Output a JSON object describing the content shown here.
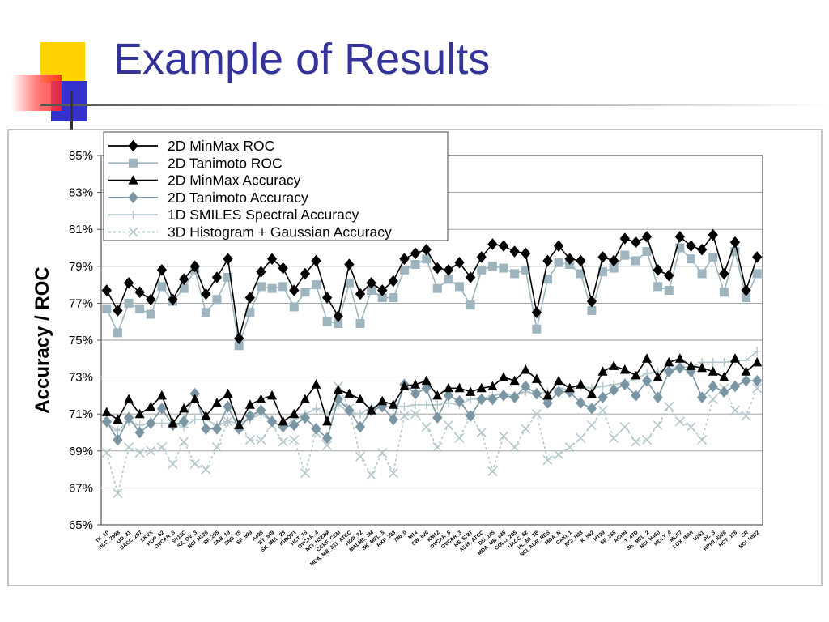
{
  "slide": {
    "title": "Example of Results",
    "accent_color": "#33339a"
  },
  "chart_data": {
    "type": "line",
    "ylabel": "Accuracy / ROC",
    "ylim": [
      65,
      85
    ],
    "yticks": [
      "65%",
      "67%",
      "69%",
      "71%",
      "73%",
      "75%",
      "77%",
      "79%",
      "81%",
      "83%",
      "85%"
    ],
    "grid": true,
    "legend_position": "top-left",
    "categories": [
      "TK_10",
      "HCC_2998",
      "UO_31",
      "UACC_257",
      "EKVX",
      "HOP_62",
      "OVCAR_5",
      "SN12C",
      "SK_OV_3",
      "NCI_H226",
      "SF_295",
      "SNB_19",
      "SNB_75",
      "SF_539",
      "A498",
      "BT_549",
      "SK_MEL_28",
      "IGROV1",
      "HCT_15",
      "OVCAR_4",
      "NCI_H322M",
      "CCRF_CEM",
      "MDA_MB_231_ATCC",
      "HOP_92",
      "MALME_3M",
      "SK_MEL_5",
      "RXF_393",
      "786_0",
      "M14",
      "SW_620",
      "KM12",
      "OVCAR_8",
      "OVCAR_3",
      "HS_578T",
      "A549_ATCC",
      "DU_145",
      "MDA_MB_435",
      "COLO_205",
      "UACC_62",
      "HL_60_TB",
      "NCI_ADR_RES",
      "MDA_N",
      "CAKI_1",
      "NCI_H23",
      "K_562",
      "HT29",
      "SF_268",
      "ACHN",
      "T_47D",
      "SK_MEL_2",
      "NCI_H460",
      "MOLT_4",
      "MCF7",
      "LOX_IMVI",
      "U251",
      "PC_3",
      "RPMI_8226",
      "HCT_116",
      "SR",
      "NCI_H522"
    ],
    "series": [
      {
        "name": "2D MinMax ROC",
        "color": "#000000",
        "marker": "diamond",
        "line": "solid",
        "values": [
          77.7,
          76.6,
          78.1,
          77.6,
          77.2,
          78.8,
          77.2,
          78.3,
          79.0,
          77.5,
          78.4,
          79.4,
          75.1,
          77.3,
          78.7,
          79.4,
          78.9,
          77.7,
          78.6,
          79.3,
          77.3,
          76.3,
          79.1,
          77.5,
          78.1,
          77.7,
          78.2,
          79.4,
          79.7,
          79.9,
          78.9,
          78.8,
          79.2,
          78.4,
          79.5,
          80.2,
          80.1,
          79.8,
          79.7,
          76.5,
          79.3,
          80.1,
          79.4,
          79.3,
          77.1,
          79.5,
          79.3,
          80.5,
          80.3,
          80.6,
          78.8,
          78.5,
          80.6,
          80.1,
          79.9,
          80.7,
          78.6,
          80.3,
          77.7,
          79.5
        ]
      },
      {
        "name": "2D Tanimoto ROC",
        "color": "#9eb4be",
        "marker": "square",
        "line": "solid",
        "values": [
          76.7,
          75.4,
          77.0,
          76.7,
          76.4,
          77.9,
          77.1,
          77.8,
          78.8,
          76.5,
          77.2,
          78.4,
          74.7,
          76.5,
          77.9,
          77.8,
          77.9,
          76.8,
          77.6,
          78.0,
          76.0,
          75.9,
          78.1,
          75.9,
          77.7,
          77.3,
          77.3,
          78.8,
          79.1,
          79.4,
          77.8,
          78.3,
          77.9,
          76.9,
          78.8,
          79.0,
          78.9,
          78.6,
          78.8,
          75.6,
          78.3,
          79.2,
          79.1,
          78.6,
          76.6,
          78.7,
          78.9,
          79.6,
          79.3,
          79.8,
          77.9,
          77.7,
          80.0,
          79.4,
          78.6,
          79.5,
          77.6,
          79.8,
          77.3,
          78.6
        ]
      },
      {
        "name": "2D MinMax Accuracy",
        "color": "#000000",
        "marker": "triangle",
        "line": "solid",
        "values": [
          71.1,
          70.7,
          71.8,
          71.0,
          71.4,
          72.0,
          70.5,
          71.3,
          71.8,
          70.9,
          71.6,
          72.1,
          70.4,
          71.5,
          71.8,
          72.0,
          70.6,
          71.0,
          71.8,
          72.6,
          70.6,
          72.3,
          72.1,
          71.8,
          71.2,
          71.7,
          71.5,
          72.5,
          72.6,
          72.8,
          72.0,
          72.4,
          72.4,
          72.2,
          72.4,
          72.5,
          73.0,
          72.8,
          73.4,
          72.9,
          72.0,
          72.8,
          72.4,
          72.6,
          72.1,
          73.3,
          73.6,
          73.4,
          73.1,
          74.0,
          73.0,
          73.8,
          74.0,
          73.6,
          73.5,
          73.3,
          73.0,
          74.0,
          73.3,
          73.8
        ]
      },
      {
        "name": "2D Tanimoto Accuracy",
        "color": "#7a96a4",
        "marker": "diamond",
        "line": "solid",
        "values": [
          70.6,
          69.6,
          70.8,
          70.0,
          70.5,
          71.3,
          70.4,
          70.6,
          72.1,
          70.2,
          70.2,
          71.4,
          70.2,
          70.9,
          71.2,
          70.6,
          70.3,
          70.4,
          70.8,
          70.2,
          69.7,
          71.8,
          71.2,
          70.3,
          71.2,
          71.4,
          70.7,
          72.6,
          72.1,
          72.4,
          70.8,
          72.0,
          71.7,
          70.9,
          71.8,
          71.8,
          72.0,
          71.9,
          72.5,
          72.1,
          71.6,
          72.2,
          72.2,
          71.6,
          71.3,
          71.9,
          72.3,
          72.6,
          72.0,
          72.8,
          71.9,
          73.3,
          73.5,
          73.3,
          71.9,
          72.5,
          72.2,
          72.5,
          72.8,
          72.8
        ]
      },
      {
        "name": "1D SMILES Spectral Accuracy",
        "color": "#b4c8cc",
        "marker": "plus",
        "line": "solid",
        "values": [
          70.5,
          70.1,
          70.6,
          70.4,
          70.5,
          70.5,
          70.5,
          70.3,
          70.7,
          70.7,
          70.4,
          70.6,
          70.5,
          70.7,
          71.0,
          70.6,
          70.3,
          70.7,
          71.0,
          71.3,
          71.0,
          71.5,
          71.1,
          71.0,
          71.4,
          71.4,
          71.4,
          71.4,
          71.5,
          71.5,
          71.5,
          71.6,
          71.5,
          71.8,
          71.8,
          72.0,
          72.1,
          72.0,
          72.2,
          72.1,
          72.2,
          72.4,
          72.3,
          72.5,
          72.4,
          72.5,
          72.6,
          72.7,
          72.9,
          73.2,
          73.3,
          73.4,
          73.6,
          73.5,
          73.8,
          73.8,
          73.8,
          73.9,
          73.9,
          74.4
        ]
      },
      {
        "name": "3D Histogram + Gaussian Accuracy",
        "color": "#b4c8cc",
        "marker": "x",
        "line": "dashed",
        "values": [
          68.9,
          66.7,
          69.2,
          68.9,
          69.0,
          69.2,
          68.3,
          69.5,
          68.3,
          68.0,
          69.2,
          70.6,
          70.5,
          69.6,
          69.6,
          70.4,
          69.5,
          69.6,
          67.8,
          70.0,
          69.3,
          72.5,
          71.3,
          68.7,
          67.7,
          68.9,
          67.8,
          70.9,
          71.0,
          70.3,
          69.2,
          70.4,
          69.7,
          70.9,
          70.0,
          67.9,
          69.8,
          69.2,
          70.2,
          71.0,
          68.5,
          68.8,
          69.2,
          69.7,
          70.4,
          71.2,
          69.7,
          70.3,
          69.5,
          69.6,
          70.4,
          71.4,
          70.6,
          70.3,
          69.6,
          71.8,
          72.4,
          71.2,
          70.9,
          72.4
        ]
      }
    ]
  }
}
